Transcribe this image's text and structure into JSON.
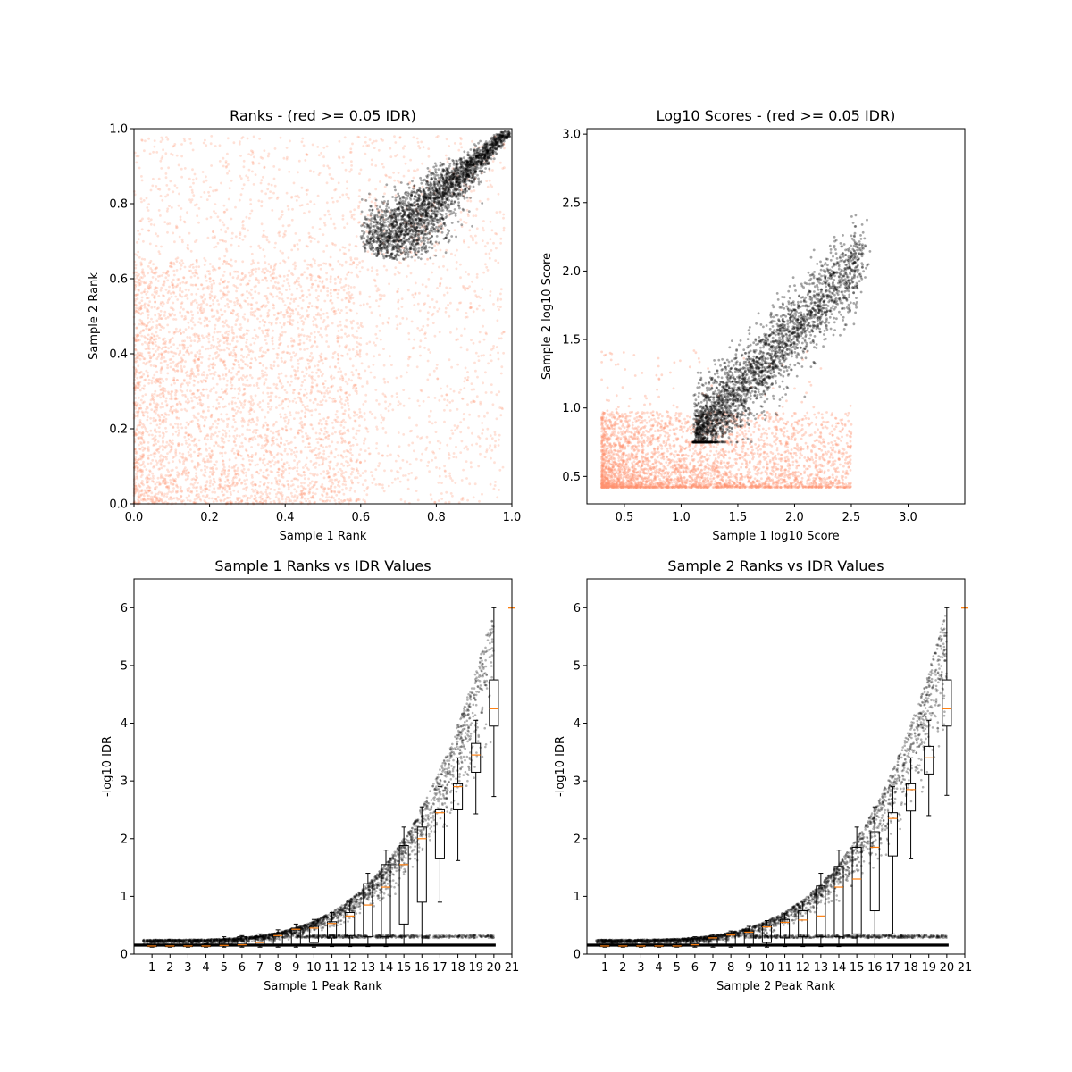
{
  "chart_data": [
    {
      "type": "scatter",
      "title": "Ranks - (red >= 0.05 IDR)",
      "xlabel": "Sample 1 Rank",
      "ylabel": "Sample 2 Rank",
      "xlim": [
        0,
        1
      ],
      "ylim": [
        0,
        1
      ],
      "xticks": [
        0.0,
        0.2,
        0.4,
        0.6,
        0.8,
        1.0
      ],
      "yticks": [
        0.0,
        0.2,
        0.4,
        0.6,
        0.8,
        1.0
      ],
      "xtick_labels": [
        "0.0",
        "0.2",
        "0.4",
        "0.6",
        "0.8",
        "1.0"
      ],
      "ytick_labels": [
        "0.0",
        "0.2",
        "0.4",
        "0.6",
        "0.8",
        "1.0"
      ],
      "colors": {
        "fail": "#ff9270",
        "pass": "#000000"
      },
      "grid": false
    },
    {
      "type": "scatter",
      "title": "Log10 Scores - (red >= 0.05 IDR)",
      "xlabel": "Sample 1 log10 Score",
      "ylabel": "Sample 2 log10 Score",
      "xlim": [
        0.17,
        3.5
      ],
      "ylim": [
        0.3,
        3.04
      ],
      "xticks": [
        0.5,
        1.0,
        1.5,
        2.0,
        2.5,
        3.0
      ],
      "yticks": [
        0.5,
        1.0,
        1.5,
        2.0,
        2.5,
        3.0
      ],
      "xtick_labels": [
        "0.5",
        "1.0",
        "1.5",
        "2.0",
        "2.5",
        "3.0"
      ],
      "ytick_labels": [
        "0.5",
        "1.0",
        "1.5",
        "2.0",
        "2.5",
        "3.0"
      ],
      "colors": {
        "fail": "#ff9270",
        "pass": "#000000"
      },
      "grid": false
    },
    {
      "type": "box",
      "title": "Sample 1 Ranks vs IDR Values",
      "xlabel": "Sample 1 Peak Rank",
      "ylabel": "-log10 IDR",
      "xlim": [
        0,
        21
      ],
      "ylim": [
        0,
        6.5
      ],
      "xticks": [
        1,
        2,
        3,
        4,
        5,
        6,
        7,
        8,
        9,
        10,
        11,
        12,
        13,
        14,
        15,
        16,
        17,
        18,
        19,
        20,
        21
      ],
      "xtick_labels": [
        "1",
        "2",
        "3",
        "4",
        "5",
        "6",
        "7",
        "8",
        "9",
        "10",
        "11",
        "12",
        "13",
        "14",
        "15",
        "16",
        "17",
        "18",
        "19",
        "20",
        "21"
      ],
      "yticks": [
        0,
        1,
        2,
        3,
        4,
        5,
        6
      ],
      "ytick_labels": [
        "0",
        "1",
        "2",
        "3",
        "4",
        "5",
        "6"
      ],
      "boxes": [
        {
          "x": 1,
          "q1": 0.13,
          "med": 0.14,
          "q3": 0.15,
          "wlo": 0.12,
          "whi": 0.17
        },
        {
          "x": 2,
          "q1": 0.13,
          "med": 0.14,
          "q3": 0.15,
          "wlo": 0.12,
          "whi": 0.17
        },
        {
          "x": 3,
          "q1": 0.13,
          "med": 0.14,
          "q3": 0.15,
          "wlo": 0.12,
          "whi": 0.17
        },
        {
          "x": 4,
          "q1": 0.13,
          "med": 0.14,
          "q3": 0.16,
          "wlo": 0.12,
          "whi": 0.18
        },
        {
          "x": 5,
          "q1": 0.14,
          "med": 0.15,
          "q3": 0.25,
          "wlo": 0.12,
          "whi": 0.3
        },
        {
          "x": 6,
          "q1": 0.14,
          "med": 0.16,
          "q3": 0.3,
          "wlo": 0.12,
          "whi": 0.32
        },
        {
          "x": 7,
          "q1": 0.15,
          "med": 0.2,
          "q3": 0.3,
          "wlo": 0.12,
          "whi": 0.35
        },
        {
          "x": 8,
          "q1": 0.16,
          "med": 0.32,
          "q3": 0.36,
          "wlo": 0.12,
          "whi": 0.42
        },
        {
          "x": 9,
          "q1": 0.17,
          "med": 0.43,
          "q3": 0.45,
          "wlo": 0.12,
          "whi": 0.52
        },
        {
          "x": 10,
          "q1": 0.2,
          "med": 0.45,
          "q3": 0.48,
          "wlo": 0.12,
          "whi": 0.6
        },
        {
          "x": 11,
          "q1": 0.28,
          "med": 0.53,
          "q3": 0.56,
          "wlo": 0.13,
          "whi": 0.72
        },
        {
          "x": 12,
          "q1": 0.32,
          "med": 0.66,
          "q3": 0.72,
          "wlo": 0.13,
          "whi": 0.9
        },
        {
          "x": 13,
          "q1": 0.3,
          "med": 0.85,
          "q3": 1.22,
          "wlo": 0.13,
          "whi": 1.4
        },
        {
          "x": 14,
          "q1": 0.3,
          "med": 1.16,
          "q3": 1.55,
          "wlo": 0.13,
          "whi": 1.8
        },
        {
          "x": 15,
          "q1": 0.52,
          "med": 1.55,
          "q3": 1.88,
          "wlo": 0.15,
          "whi": 2.2
        },
        {
          "x": 16,
          "q1": 0.9,
          "med": 2.0,
          "q3": 2.2,
          "wlo": 0.15,
          "whi": 2.55
        },
        {
          "x": 17,
          "q1": 1.65,
          "med": 2.45,
          "q3": 2.5,
          "wlo": 0.9,
          "whi": 2.9
        },
        {
          "x": 18,
          "q1": 2.5,
          "med": 2.9,
          "q3": 2.95,
          "wlo": 1.62,
          "whi": 3.4
        },
        {
          "x": 19,
          "q1": 3.15,
          "med": 3.45,
          "q3": 3.65,
          "wlo": 2.43,
          "whi": 4.05
        },
        {
          "x": 20,
          "q1": 3.95,
          "med": 4.25,
          "q3": 4.75,
          "wlo": 2.73,
          "whi": 6.0
        }
      ],
      "flier": {
        "x": 21,
        "y": 6.0
      },
      "grid": false
    },
    {
      "type": "box",
      "title": "Sample 2 Ranks vs IDR Values",
      "xlabel": "Sample 2 Peak Rank",
      "ylabel": "-log10 IDR",
      "xlim": [
        0,
        21
      ],
      "ylim": [
        0,
        6.5
      ],
      "xticks": [
        1,
        2,
        3,
        4,
        5,
        6,
        7,
        8,
        9,
        10,
        11,
        12,
        13,
        14,
        15,
        16,
        17,
        18,
        19,
        20,
        21
      ],
      "xtick_labels": [
        "1",
        "2",
        "3",
        "4",
        "5",
        "6",
        "7",
        "8",
        "9",
        "10",
        "11",
        "12",
        "13",
        "14",
        "15",
        "16",
        "17",
        "18",
        "19",
        "20",
        "21"
      ],
      "yticks": [
        0,
        1,
        2,
        3,
        4,
        5,
        6
      ],
      "ytick_labels": [
        "0",
        "1",
        "2",
        "3",
        "4",
        "5",
        "6"
      ],
      "boxes": [
        {
          "x": 1,
          "q1": 0.13,
          "med": 0.14,
          "q3": 0.15,
          "wlo": 0.12,
          "whi": 0.17
        },
        {
          "x": 2,
          "q1": 0.13,
          "med": 0.14,
          "q3": 0.15,
          "wlo": 0.12,
          "whi": 0.17
        },
        {
          "x": 3,
          "q1": 0.13,
          "med": 0.14,
          "q3": 0.15,
          "wlo": 0.12,
          "whi": 0.17
        },
        {
          "x": 4,
          "q1": 0.13,
          "med": 0.14,
          "q3": 0.15,
          "wlo": 0.12,
          "whi": 0.17
        },
        {
          "x": 5,
          "q1": 0.13,
          "med": 0.14,
          "q3": 0.16,
          "wlo": 0.12,
          "whi": 0.2
        },
        {
          "x": 6,
          "q1": 0.14,
          "med": 0.16,
          "q3": 0.28,
          "wlo": 0.12,
          "whi": 0.3
        },
        {
          "x": 7,
          "q1": 0.15,
          "med": 0.28,
          "q3": 0.3,
          "wlo": 0.12,
          "whi": 0.34
        },
        {
          "x": 8,
          "q1": 0.16,
          "med": 0.33,
          "q3": 0.35,
          "wlo": 0.12,
          "whi": 0.4
        },
        {
          "x": 9,
          "q1": 0.17,
          "med": 0.38,
          "q3": 0.4,
          "wlo": 0.12,
          "whi": 0.48
        },
        {
          "x": 10,
          "q1": 0.2,
          "med": 0.47,
          "q3": 0.5,
          "wlo": 0.12,
          "whi": 0.58
        },
        {
          "x": 11,
          "q1": 0.28,
          "med": 0.55,
          "q3": 0.6,
          "wlo": 0.13,
          "whi": 0.7
        },
        {
          "x": 12,
          "q1": 0.3,
          "med": 0.59,
          "q3": 0.75,
          "wlo": 0.13,
          "whi": 0.9
        },
        {
          "x": 13,
          "q1": 0.3,
          "med": 0.66,
          "q3": 1.18,
          "wlo": 0.13,
          "whi": 1.4
        },
        {
          "x": 14,
          "q1": 0.3,
          "med": 1.16,
          "q3": 1.52,
          "wlo": 0.13,
          "whi": 1.8
        },
        {
          "x": 15,
          "q1": 0.35,
          "med": 1.3,
          "q3": 1.85,
          "wlo": 0.15,
          "whi": 2.2
        },
        {
          "x": 16,
          "q1": 0.75,
          "med": 1.85,
          "q3": 2.12,
          "wlo": 0.15,
          "whi": 2.55
        },
        {
          "x": 17,
          "q1": 1.7,
          "med": 2.35,
          "q3": 2.45,
          "wlo": 0.35,
          "whi": 2.9
        },
        {
          "x": 18,
          "q1": 2.48,
          "med": 2.85,
          "q3": 2.95,
          "wlo": 1.65,
          "whi": 3.4
        },
        {
          "x": 19,
          "q1": 3.12,
          "med": 3.4,
          "q3": 3.6,
          "wlo": 2.4,
          "whi": 4.05
        },
        {
          "x": 20,
          "q1": 3.95,
          "med": 4.25,
          "q3": 4.75,
          "wlo": 2.75,
          "whi": 6.0
        }
      ],
      "flier": {
        "x": 21,
        "y": 6.0
      },
      "grid": false
    }
  ]
}
